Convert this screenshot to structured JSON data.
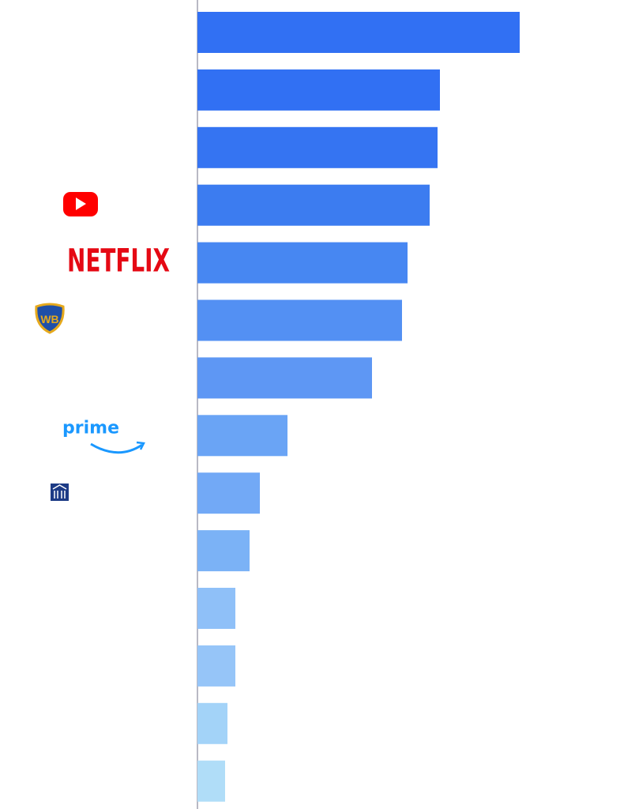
{
  "chart_data": {
    "type": "bar",
    "categories": [
      null,
      null,
      null,
      null,
      "NETFLIX",
      null,
      null,
      "prime",
      null,
      null,
      null,
      null,
      null,
      null
    ],
    "values": [
      408,
      307,
      304,
      294,
      266,
      259,
      221,
      114,
      79,
      66,
      48,
      48,
      38,
      35
    ],
    "colors": [
      "#3170f3",
      "#3170f3",
      "#3574f2",
      "#3c7cf0",
      "#4787f2",
      "#5390f3",
      "#5e97f4",
      "#6aa4f5",
      "#72a9f6",
      "#7bb2f6",
      "#8fc0f8",
      "#96c5f8",
      "#a3d3f8",
      "#b0ddf8"
    ]
  }
}
